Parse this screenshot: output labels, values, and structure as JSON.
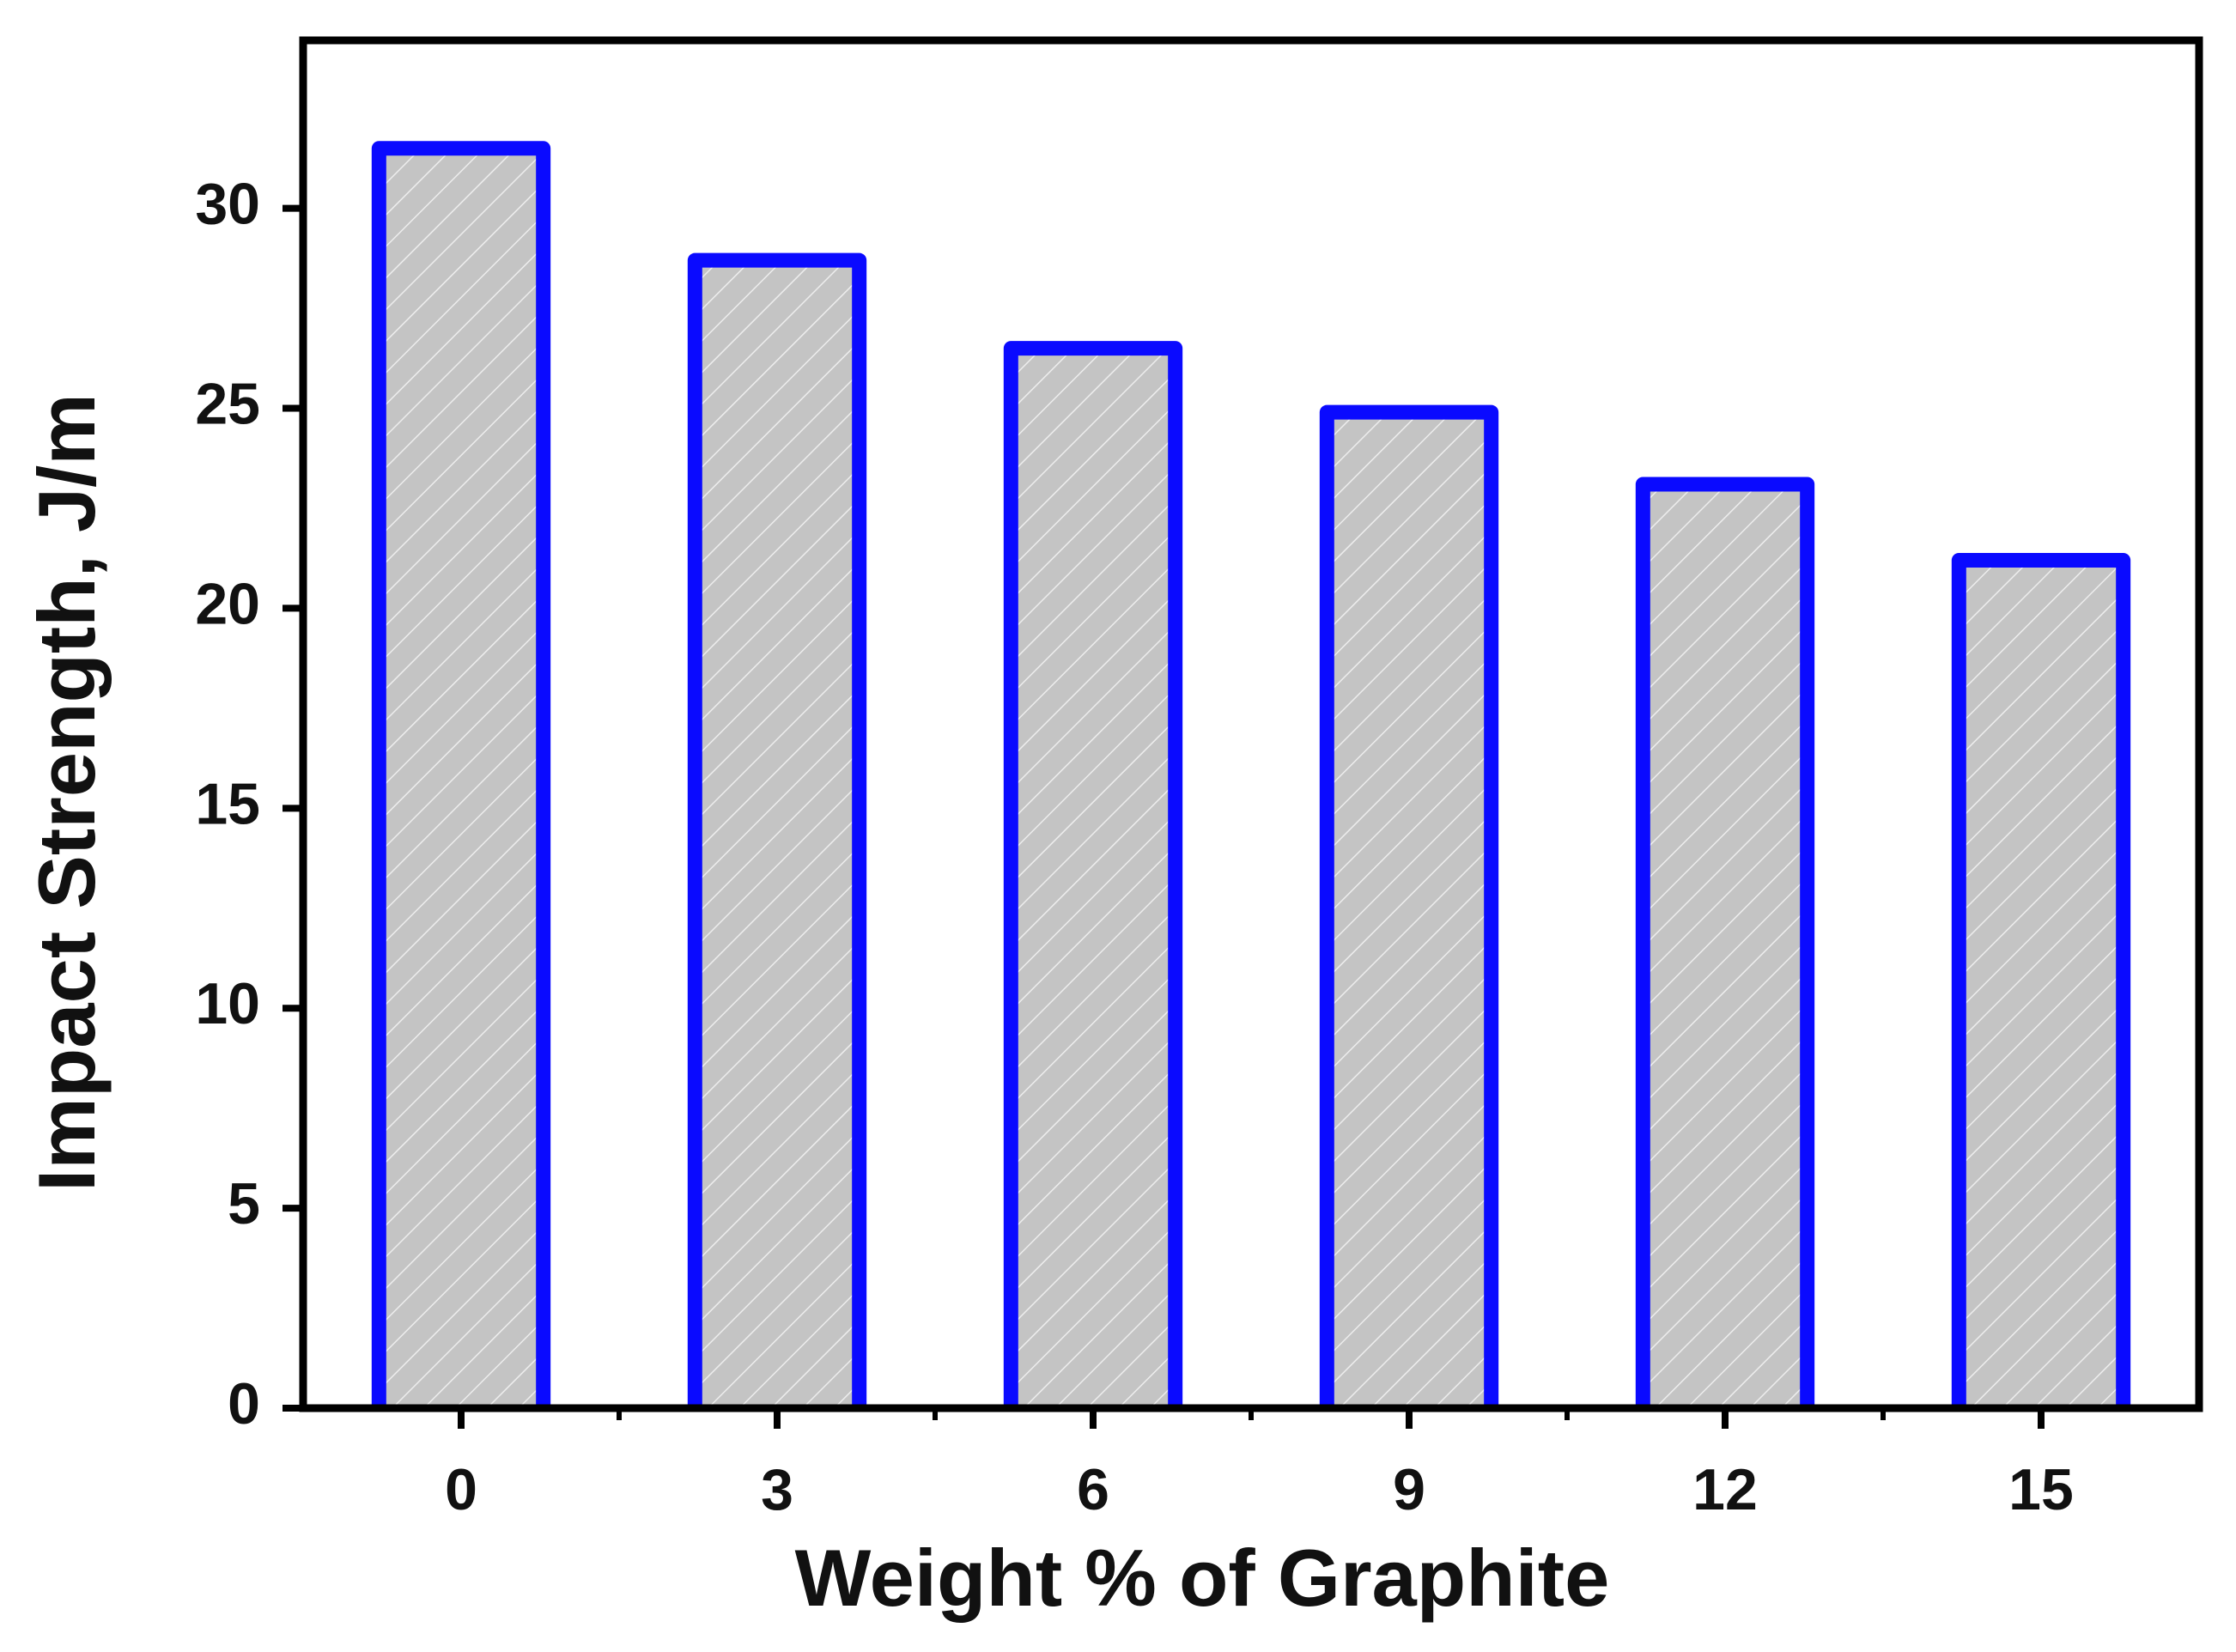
{
  "chart_data": {
    "type": "bar",
    "x_label": "Weight % of Graphite",
    "y_label": "Impact Strength, J/m",
    "categories": [
      "0",
      "3",
      "6",
      "9",
      "12",
      "15"
    ],
    "values": [
      31.5,
      28.7,
      26.5,
      24.9,
      23.1,
      21.2
    ],
    "color": "#c4c4c4",
    "edgecolor": "#0a0aff",
    "ylim": [
      0,
      34.2
    ],
    "yticks": [
      0,
      5,
      10,
      15,
      20,
      25,
      30
    ],
    "grid": false
  }
}
